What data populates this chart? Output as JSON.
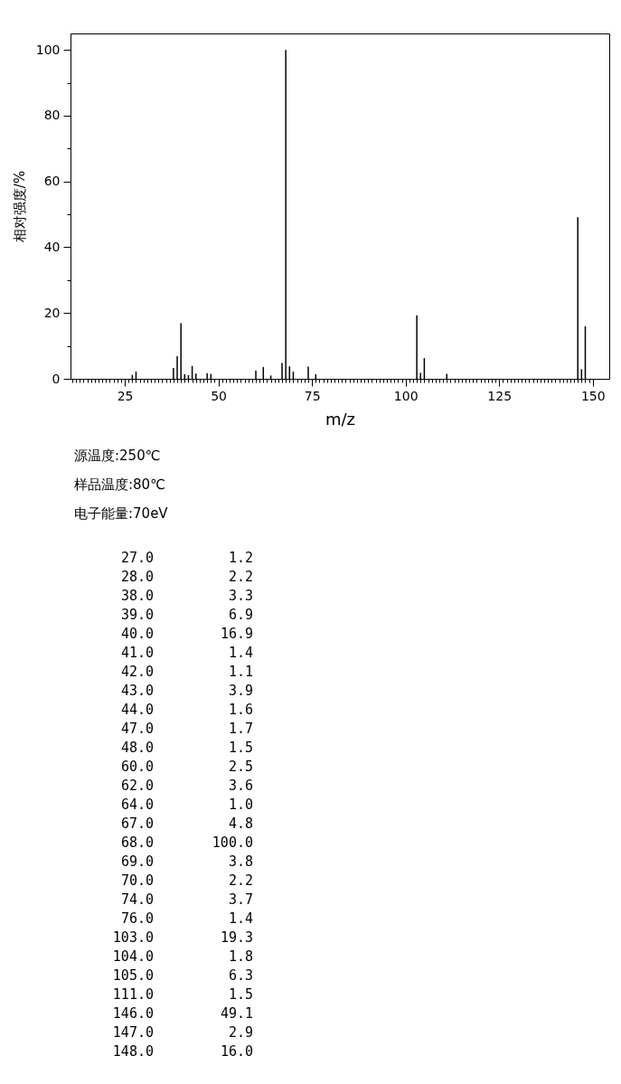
{
  "chart_data": {
    "type": "bar",
    "xlabel": "m/z",
    "ylabel": "相对强度/%",
    "color": "#000000",
    "x": [
      27,
      28,
      38,
      39,
      40,
      41,
      42,
      43,
      44,
      47,
      48,
      60,
      62,
      64,
      67,
      68,
      69,
      70,
      74,
      76,
      103,
      104,
      105,
      111,
      146,
      147,
      148
    ],
    "values": [
      1.2,
      2.2,
      3.3,
      6.9,
      16.9,
      1.4,
      1.1,
      3.9,
      1.6,
      1.7,
      1.5,
      2.5,
      3.6,
      1.0,
      4.8,
      100.0,
      3.8,
      2.2,
      3.7,
      1.4,
      19.3,
      1.8,
      6.3,
      1.5,
      49.1,
      2.9,
      16.0
    ],
    "xlim": [
      10.5,
      154.4
    ],
    "xticks": [
      {
        "value": 11,
        "label": null
      },
      {
        "value": 12,
        "label": null
      },
      {
        "value": 13,
        "label": null
      },
      {
        "value": 14,
        "label": null
      },
      {
        "value": 15,
        "label": null
      },
      {
        "value": 16,
        "label": null
      },
      {
        "value": 17,
        "label": null
      },
      {
        "value": 18,
        "label": null
      },
      {
        "value": 19,
        "label": null
      },
      {
        "value": 20,
        "label": null
      },
      {
        "value": 21,
        "label": null
      },
      {
        "value": 22,
        "label": null
      },
      {
        "value": 23,
        "label": null
      },
      {
        "value": 24,
        "label": null
      },
      25,
      {
        "value": 26,
        "label": null
      },
      {
        "value": 27,
        "label": null
      },
      {
        "value": 28,
        "label": null
      },
      {
        "value": 29,
        "label": null
      },
      {
        "value": 30,
        "label": null
      },
      {
        "value": 31,
        "label": null
      },
      {
        "value": 32,
        "label": null
      },
      {
        "value": 33,
        "label": null
      },
      {
        "value": 34,
        "label": null
      },
      {
        "value": 35,
        "label": null
      },
      {
        "value": 36,
        "label": null
      },
      {
        "value": 37,
        "label": null
      },
      {
        "value": 38,
        "label": null
      },
      {
        "value": 39,
        "label": null
      },
      {
        "value": 40,
        "label": null
      },
      {
        "value": 41,
        "label": null
      },
      {
        "value": 42,
        "label": null
      },
      {
        "value": 43,
        "label": null
      },
      {
        "value": 44,
        "label": null
      },
      {
        "value": 45,
        "label": null
      },
      {
        "value": 46,
        "label": null
      },
      {
        "value": 47,
        "label": null
      },
      {
        "value": 48,
        "label": null
      },
      {
        "value": 49,
        "label": null
      },
      50,
      {
        "value": 51,
        "label": null
      },
      {
        "value": 52,
        "label": null
      },
      {
        "value": 53,
        "label": null
      },
      {
        "value": 54,
        "label": null
      },
      {
        "value": 55,
        "label": null
      },
      {
        "value": 56,
        "label": null
      },
      {
        "value": 57,
        "label": null
      },
      {
        "value": 58,
        "label": null
      },
      {
        "value": 59,
        "label": null
      },
      {
        "value": 60,
        "label": null
      },
      {
        "value": 61,
        "label": null
      },
      {
        "value": 62,
        "label": null
      },
      {
        "value": 63,
        "label": null
      },
      {
        "value": 64,
        "label": null
      },
      {
        "value": 65,
        "label": null
      },
      {
        "value": 66,
        "label": null
      },
      {
        "value": 67,
        "label": null
      },
      {
        "value": 68,
        "label": null
      },
      {
        "value": 69,
        "label": null
      },
      {
        "value": 70,
        "label": null
      },
      {
        "value": 71,
        "label": null
      },
      {
        "value": 72,
        "label": null
      },
      {
        "value": 73,
        "label": null
      },
      {
        "value": 74,
        "label": null
      },
      75,
      {
        "value": 76,
        "label": null
      },
      {
        "value": 77,
        "label": null
      },
      {
        "value": 78,
        "label": null
      },
      {
        "value": 79,
        "label": null
      },
      {
        "value": 80,
        "label": null
      },
      {
        "value": 81,
        "label": null
      },
      {
        "value": 82,
        "label": null
      },
      {
        "value": 83,
        "label": null
      },
      {
        "value": 84,
        "label": null
      },
      {
        "value": 85,
        "label": null
      },
      {
        "value": 86,
        "label": null
      },
      {
        "value": 87,
        "label": null
      },
      {
        "value": 88,
        "label": null
      },
      {
        "value": 89,
        "label": null
      },
      {
        "value": 90,
        "label": null
      },
      {
        "value": 91,
        "label": null
      },
      {
        "value": 92,
        "label": null
      },
      {
        "value": 93,
        "label": null
      },
      {
        "value": 94,
        "label": null
      },
      {
        "value": 95,
        "label": null
      },
      {
        "value": 96,
        "label": null
      },
      {
        "value": 97,
        "label": null
      },
      {
        "value": 98,
        "label": null
      },
      {
        "value": 99,
        "label": null
      },
      100,
      {
        "value": 101,
        "label": null
      },
      {
        "value": 102,
        "label": null
      },
      {
        "value": 103,
        "label": null
      },
      {
        "value": 104,
        "label": null
      },
      {
        "value": 105,
        "label": null
      },
      {
        "value": 106,
        "label": null
      },
      {
        "value": 107,
        "label": null
      },
      {
        "value": 108,
        "label": null
      },
      {
        "value": 109,
        "label": null
      },
      {
        "value": 110,
        "label": null
      },
      {
        "value": 111,
        "label": null
      },
      {
        "value": 112,
        "label": null
      },
      {
        "value": 113,
        "label": null
      },
      {
        "value": 114,
        "label": null
      },
      {
        "value": 115,
        "label": null
      },
      {
        "value": 116,
        "label": null
      },
      {
        "value": 117,
        "label": null
      },
      {
        "value": 118,
        "label": null
      },
      {
        "value": 119,
        "label": null
      },
      {
        "value": 120,
        "label": null
      },
      {
        "value": 121,
        "label": null
      },
      {
        "value": 122,
        "label": null
      },
      {
        "value": 123,
        "label": null
      },
      {
        "value": 124,
        "label": null
      },
      125,
      {
        "value": 126,
        "label": null
      },
      {
        "value": 127,
        "label": null
      },
      {
        "value": 128,
        "label": null
      },
      {
        "value": 129,
        "label": null
      },
      {
        "value": 130,
        "label": null
      },
      {
        "value": 131,
        "label": null
      },
      {
        "value": 132,
        "label": null
      },
      {
        "value": 133,
        "label": null
      },
      {
        "value": 134,
        "label": null
      },
      {
        "value": 135,
        "label": null
      },
      {
        "value": 136,
        "label": null
      },
      {
        "value": 137,
        "label": null
      },
      {
        "value": 138,
        "label": null
      },
      {
        "value": 139,
        "label": null
      },
      {
        "value": 140,
        "label": null
      },
      {
        "value": 141,
        "label": null
      },
      {
        "value": 142,
        "label": null
      },
      {
        "value": 143,
        "label": null
      },
      {
        "value": 144,
        "label": null
      },
      {
        "value": 145,
        "label": null
      },
      {
        "value": 146,
        "label": null
      },
      {
        "value": 147,
        "label": null
      },
      {
        "value": 148,
        "label": null
      },
      {
        "value": 149,
        "label": null
      },
      150
    ],
    "ylim": [
      0,
      105
    ],
    "yticks": [
      0,
      {
        "value": 10,
        "label": null
      },
      20,
      {
        "value": 30,
        "label": null
      },
      40,
      {
        "value": 50,
        "label": null
      },
      60,
      {
        "value": 70,
        "label": null
      },
      80,
      {
        "value": 90,
        "label": null
      },
      100
    ],
    "grid": false,
    "annotations": [
      "源温度:250℃",
      "样品温度:80℃",
      "电子能量:70eV",
      "27.0",
      "1.2",
      "28.0",
      "2.2",
      "38.0",
      "3.3",
      "39.0",
      "6.9",
      "40.0",
      "16.9",
      "41.0",
      "1.4",
      "42.0",
      "1.1",
      "43.0",
      "3.9",
      "44.0",
      "1.6",
      "47.0",
      "1.7",
      "48.0",
      "1.5",
      "60.0",
      "2.5",
      "62.0",
      "3.6",
      "64.0",
      "1.0",
      "67.0",
      "4.8",
      "68.0",
      "100.0",
      "69.0",
      "3.8",
      "70.0",
      "2.2",
      "74.0",
      "3.7",
      "76.0",
      "1.4",
      "103.0",
      "19.3",
      "104.0",
      "1.8",
      "105.0",
      "6.3",
      "111.0",
      "1.5",
      "146.0",
      "49.1",
      "147.0",
      "2.9",
      "148.0",
      "16.0"
    ]
  }
}
